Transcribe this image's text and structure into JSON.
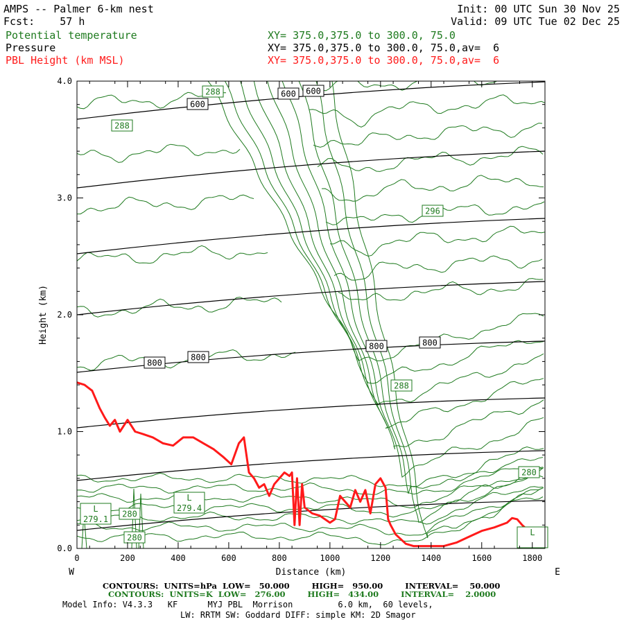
{
  "header": {
    "title": "AMPS -- Palmer 6-km nest",
    "init": "Init: 00 UTC Sun 30 Nov 25",
    "fcst": "Fcst:    57 h",
    "valid": "Valid: 09 UTC Tue 02 Dec 25",
    "field1_name": "Potential temperature",
    "field1_xy": "XY= 375.0,375.0 to 300.0, 75.0",
    "field2_name": "Pressure",
    "field2_xy": "XY= 375.0,375.0 to 300.0, 75.0,av=  6",
    "field3_name": "PBL Height (km MSL)",
    "field3_xy": "XY= 375.0,375.0 to 300.0, 75.0,av=  6"
  },
  "colors": {
    "theta": "#1e7a1e",
    "pressure": "#000000",
    "pbl": "#ff1a1a"
  },
  "footer": {
    "contours_hpa": "CONTOURS:  UNITS=hPa  LOW=   50.000        HIGH=   950.00        INTERVAL=    50.000",
    "contours_k": "CONTOURS:  UNITS=K  LOW=   276.00        HIGH=   434.00        INTERVAL=    2.0000",
    "model_info": "Model Info: V4.3.3   KF      MYJ PBL  Morrison         6.0 km,  60 levels,",
    "model_info2": "LW: RRTM SW: Goddard DIFF: simple KM: 2D Smagor"
  },
  "chart_data": {
    "type": "line",
    "xlabel": "Distance (km)",
    "ylabel": "Height (km)",
    "xlim": [
      0,
      1850
    ],
    "ylim": [
      0,
      4
    ],
    "x_ticks": [
      "0",
      "200",
      "400",
      "600",
      "800",
      "1000",
      "1200",
      "1400",
      "1600",
      "1800"
    ],
    "y_ticks": [
      "0.0",
      "1.0",
      "2.0",
      "3.0",
      "4.0"
    ],
    "left_label": "W",
    "right_label": "E",
    "series": [
      {
        "name": "PBL Height (km MSL)",
        "x": [
          0,
          30,
          60,
          90,
          110,
          130,
          150,
          170,
          200,
          230,
          260,
          300,
          340,
          380,
          420,
          460,
          500,
          540,
          580,
          610,
          640,
          660,
          680,
          700,
          720,
          740,
          760,
          780,
          800,
          820,
          840,
          850,
          860,
          870,
          880,
          890,
          900,
          930,
          960,
          1000,
          1020,
          1040,
          1060,
          1080,
          1100,
          1120,
          1140,
          1160,
          1180,
          1200,
          1220,
          1230,
          1240,
          1260,
          1300,
          1330,
          1400,
          1450,
          1500,
          1550,
          1600,
          1650,
          1700,
          1720,
          1740,
          1760,
          1780,
          1800,
          1820,
          1840
        ],
        "y": [
          1.42,
          1.4,
          1.35,
          1.2,
          1.12,
          1.05,
          1.1,
          1.0,
          1.1,
          1.0,
          0.98,
          0.95,
          0.9,
          0.88,
          0.95,
          0.95,
          0.9,
          0.85,
          0.78,
          0.72,
          0.9,
          0.95,
          0.65,
          0.6,
          0.52,
          0.55,
          0.45,
          0.55,
          0.6,
          0.65,
          0.62,
          0.65,
          0.2,
          0.6,
          0.2,
          0.55,
          0.35,
          0.3,
          0.28,
          0.22,
          0.25,
          0.45,
          0.4,
          0.35,
          0.5,
          0.4,
          0.5,
          0.3,
          0.55,
          0.6,
          0.52,
          0.25,
          0.2,
          0.12,
          0.04,
          0.02,
          0.02,
          0.02,
          0.05,
          0.1,
          0.15,
          0.18,
          0.22,
          0.26,
          0.25,
          0.2,
          0.16,
          0.08,
          0.06,
          0.04
        ]
      }
    ],
    "theta_labels": [
      "288",
      "288",
      "296",
      "288",
      "280",
      "280",
      "280"
    ],
    "pressure_labels": [
      "600",
      "600",
      "600",
      "800",
      "800",
      "800",
      "800"
    ],
    "low_labels": [
      {
        "letter": "L",
        "value": "279.1"
      },
      {
        "letter": "L",
        "value": "279.4"
      },
      {
        "letter": "L",
        "value": ""
      }
    ]
  }
}
